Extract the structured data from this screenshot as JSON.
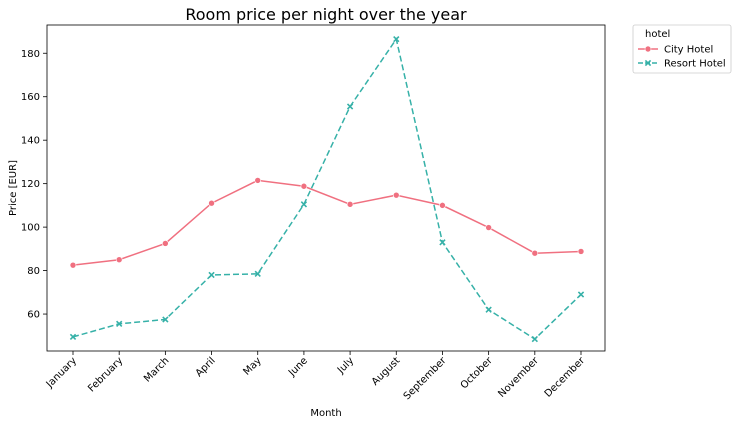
{
  "chart_data": {
    "type": "line",
    "title": "Room price per night over the year",
    "xlabel": "Month",
    "ylabel": "Price [EUR]",
    "categories": [
      "January",
      "February",
      "March",
      "April",
      "May",
      "June",
      "July",
      "August",
      "September",
      "October",
      "November",
      "December"
    ],
    "ylim": [
      43,
      193
    ],
    "yticks": [
      60,
      80,
      100,
      120,
      140,
      160,
      180
    ],
    "grid": false,
    "legend": {
      "title": "hotel",
      "placement": "outside-top-right"
    },
    "series": [
      {
        "name": "City Hotel",
        "color": "#f07080",
        "marker": "circle",
        "linestyle": "solid",
        "values": [
          82.5,
          85.0,
          92.5,
          111.0,
          121.5,
          118.8,
          110.5,
          114.7,
          110.0,
          99.8,
          88.0,
          88.8
        ]
      },
      {
        "name": "Resort Hotel",
        "color": "#36b1a8",
        "marker": "x",
        "linestyle": "dashed",
        "values": [
          49.5,
          55.5,
          57.5,
          78.0,
          78.5,
          110.5,
          155.5,
          186.5,
          93.0,
          62.0,
          48.5,
          69.0
        ]
      }
    ]
  }
}
